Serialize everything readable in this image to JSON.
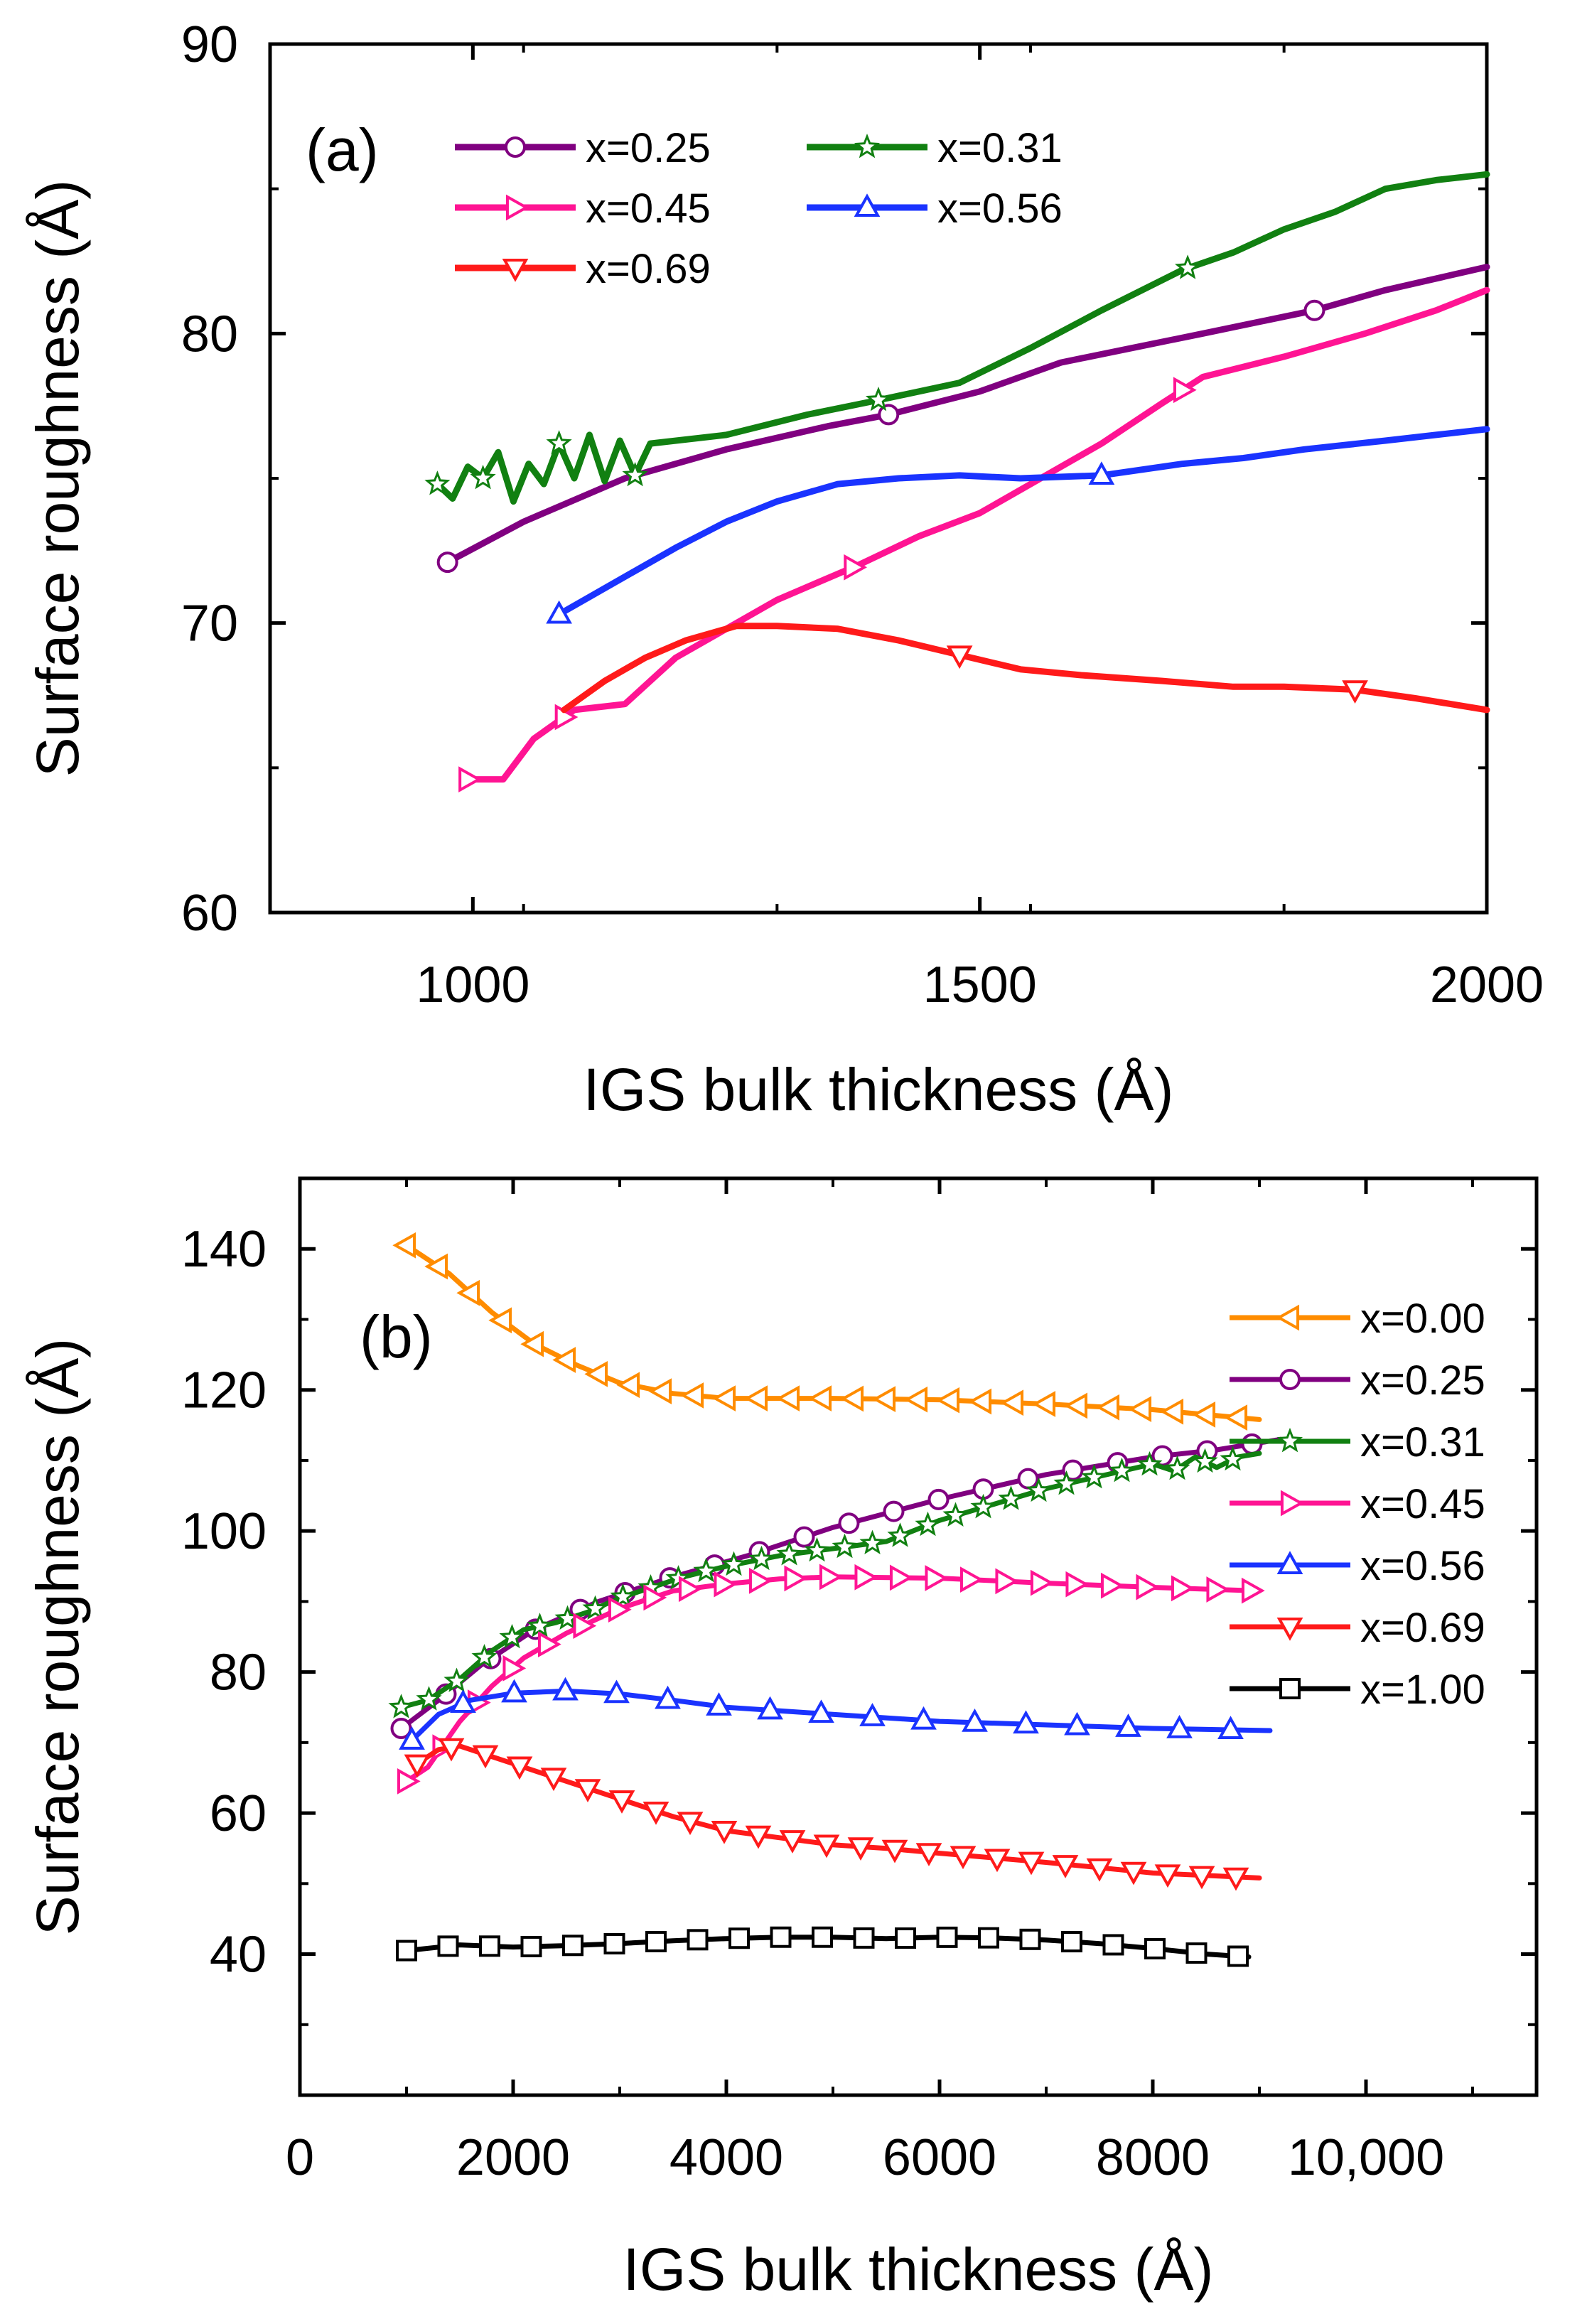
{
  "chart_data": [
    {
      "type": "line",
      "panel": "(a)",
      "xlabel": "IGS bulk thickness (Å)",
      "ylabel": "Surface roughness (Å)",
      "xlim": [
        800,
        2000
      ],
      "ylim": [
        60,
        90
      ],
      "xticks": [
        1000,
        1500,
        2000
      ],
      "xtick_labels": [
        "1000",
        "1500",
        "2000"
      ],
      "yticks": [
        60,
        70,
        80,
        90
      ],
      "ytick_labels": [
        "60",
        "70",
        "80",
        "90"
      ],
      "legend_position": "top-left",
      "legend_columns": 2,
      "series": [
        {
          "name": "x=0.25",
          "color": "#800080",
          "marker": "circle",
          "x": [
            975,
            1050,
            1150,
            1250,
            1350,
            1410,
            1500,
            1580,
            1650,
            1720,
            1830,
            1900,
            2000
          ],
          "y": [
            72.1,
            73.5,
            75.0,
            76.0,
            76.8,
            77.2,
            78.0,
            79.0,
            79.5,
            80.0,
            80.8,
            81.5,
            82.3
          ],
          "marker_x": [
            975,
            1410,
            1830
          ]
        },
        {
          "name": "x=0.31",
          "color": "#118011",
          "marker": "star",
          "x": [
            965,
            980,
            995,
            1010,
            1025,
            1040,
            1055,
            1070,
            1085,
            1100,
            1115,
            1130,
            1145,
            1160,
            1175,
            1250,
            1330,
            1400,
            1480,
            1550,
            1620,
            1700,
            1750,
            1800,
            1850,
            1900,
            1950,
            2000
          ],
          "y": [
            74.8,
            74.3,
            75.4,
            75.0,
            75.9,
            74.2,
            75.5,
            74.8,
            76.2,
            75.0,
            76.5,
            74.9,
            76.3,
            75.1,
            76.2,
            76.5,
            77.2,
            77.7,
            78.3,
            79.5,
            80.8,
            82.2,
            82.8,
            83.6,
            84.2,
            85.0,
            85.3,
            85.5
          ],
          "marker_x": [
            965,
            1010,
            1085,
            1160,
            1400,
            1705
          ]
        },
        {
          "name": "x=0.45",
          "color": "#ff1493",
          "marker": "triangle-right",
          "x": [
            995,
            1030,
            1060,
            1100,
            1150,
            1200,
            1250,
            1300,
            1380,
            1440,
            1500,
            1560,
            1620,
            1680,
            1720,
            1800,
            1880,
            1950,
            2000
          ],
          "y": [
            64.6,
            64.6,
            66.0,
            67.0,
            67.2,
            68.8,
            69.8,
            70.8,
            72.0,
            73.0,
            73.8,
            75.0,
            76.2,
            77.6,
            78.5,
            79.2,
            80.0,
            80.8,
            81.5
          ],
          "marker_x": [
            995,
            1090,
            1375,
            1700
          ]
        },
        {
          "name": "x=0.56",
          "color": "#1a33ff",
          "marker": "triangle-up",
          "x": [
            1085,
            1120,
            1160,
            1200,
            1250,
            1300,
            1360,
            1420,
            1480,
            1540,
            1620,
            1700,
            1760,
            1820,
            1900,
            1950,
            2000
          ],
          "y": [
            70.3,
            71.0,
            71.8,
            72.6,
            73.5,
            74.2,
            74.8,
            75.0,
            75.1,
            75.0,
            75.1,
            75.5,
            75.7,
            76.0,
            76.3,
            76.5,
            76.7
          ],
          "marker_x": [
            1085,
            1620
          ]
        },
        {
          "name": "x=0.69",
          "color": "#ff1a1a",
          "marker": "triangle-down",
          "x": [
            1090,
            1130,
            1170,
            1210,
            1260,
            1300,
            1360,
            1420,
            1480,
            1540,
            1600,
            1680,
            1750,
            1800,
            1870,
            1930,
            2000
          ],
          "y": [
            67.0,
            68.0,
            68.8,
            69.4,
            69.9,
            69.9,
            69.8,
            69.4,
            68.9,
            68.4,
            68.2,
            68.0,
            67.8,
            67.8,
            67.7,
            67.4,
            67.0
          ],
          "marker_x": [
            1480,
            1870
          ]
        }
      ]
    },
    {
      "type": "line",
      "panel": "(b)",
      "xlabel": "IGS bulk thickness (Å)",
      "ylabel": "Surface roughness (Å)",
      "xlim": [
        0,
        11600
      ],
      "ylim": [
        20,
        150
      ],
      "xticks": [
        0,
        2000,
        4000,
        6000,
        8000,
        10000
      ],
      "xtick_labels": [
        "0",
        "2000",
        "4000",
        "6000",
        "8000",
        "10,000"
      ],
      "yticks": [
        40,
        60,
        80,
        100,
        120,
        140
      ],
      "ytick_labels": [
        "40",
        "60",
        "80",
        "100",
        "120",
        "140"
      ],
      "legend_position": "right",
      "legend_columns": 1,
      "series": [
        {
          "name": "x=0.00",
          "color": "#ff8c00",
          "marker": "triangle-left",
          "x": [
            1000,
            1400,
            1800,
            2200,
            2600,
            3000,
            3500,
            4000,
            5000,
            6000,
            7000,
            8000,
            9000
          ],
          "y": [
            140.5,
            136.5,
            131.0,
            126.5,
            123.5,
            121.0,
            119.5,
            118.8,
            118.8,
            118.6,
            118.0,
            117.2,
            115.8
          ],
          "marker_step": 300
        },
        {
          "name": "x=0.25",
          "color": "#800080",
          "marker": "circle",
          "x": [
            950,
            1300,
            1700,
            2200,
            2800,
            3500,
            4200,
            5000,
            6000,
            7000,
            8000,
            8600,
            9200
          ],
          "y": [
            72.0,
            76.0,
            81.0,
            86.0,
            90.0,
            93.5,
            96.5,
            100.5,
            104.5,
            108.0,
            110.5,
            111.5,
            113.0
          ],
          "marker_step": 420
        },
        {
          "name": "x=0.31",
          "color": "#118011",
          "marker": "star",
          "x": [
            950,
            1200,
            1500,
            1800,
            2100,
            2400,
            2700,
            3000,
            3300,
            3600,
            4000,
            4500,
            5000,
            5500,
            6000,
            7000,
            8000,
            8200,
            8400,
            8600,
            8800,
            9000
          ],
          "y": [
            75.0,
            76.0,
            79.0,
            83.0,
            86.0,
            87.0,
            88.5,
            90.5,
            92.0,
            93.5,
            95.0,
            96.5,
            97.5,
            98.5,
            101.5,
            106.0,
            109.5,
            108.5,
            110.5,
            109.0,
            110.5,
            111.0
          ],
          "marker_step": 260
        },
        {
          "name": "x=0.45",
          "color": "#ff1493",
          "marker": "triangle-right",
          "x": [
            1000,
            1200,
            1500,
            1800,
            2100,
            2500,
            3000,
            3500,
            4000,
            4500,
            5000,
            6000,
            7000,
            8000,
            9000
          ],
          "y": [
            64.5,
            66.5,
            73.0,
            78.0,
            82.0,
            85.5,
            89.0,
            91.5,
            92.5,
            93.2,
            93.5,
            93.3,
            92.6,
            92.0,
            91.5
          ],
          "marker_step": 330
        },
        {
          "name": "x=0.56",
          "color": "#1a33ff",
          "marker": "triangle-up",
          "x": [
            1050,
            1300,
            1600,
            2000,
            2500,
            3000,
            3500,
            4000,
            5000,
            6000,
            7000,
            8000,
            9100
          ],
          "y": [
            70.3,
            74.0,
            76.0,
            77.0,
            77.3,
            76.9,
            76.0,
            75.0,
            74.0,
            73.0,
            72.5,
            72.0,
            71.7
          ],
          "marker_step": 480
        },
        {
          "name": "x=0.69",
          "color": "#ff1a1a",
          "marker": "triangle-down",
          "x": [
            1100,
            1300,
            1500,
            2000,
            2500,
            3000,
            3500,
            4000,
            4500,
            5000,
            5500,
            6000,
            7000,
            8000,
            9000
          ],
          "y": [
            67.0,
            69.0,
            69.5,
            67.0,
            64.5,
            62.0,
            59.5,
            57.5,
            56.5,
            55.5,
            55.0,
            54.3,
            53.0,
            51.5,
            50.8
          ],
          "marker_step": 320
        },
        {
          "name": "x=1.00",
          "color": "#000000",
          "marker": "square",
          "x": [
            1000,
            1500,
            2000,
            2500,
            3000,
            3500,
            4000,
            4500,
            5000,
            5500,
            6000,
            6500,
            7000,
            7500,
            8000,
            8500,
            8900
          ],
          "y": [
            40.5,
            41.3,
            41.0,
            41.2,
            41.5,
            41.9,
            42.2,
            42.4,
            42.4,
            42.2,
            42.4,
            42.3,
            42.0,
            41.5,
            40.8,
            40.0,
            39.6
          ],
          "marker_step": 390
        }
      ]
    }
  ]
}
